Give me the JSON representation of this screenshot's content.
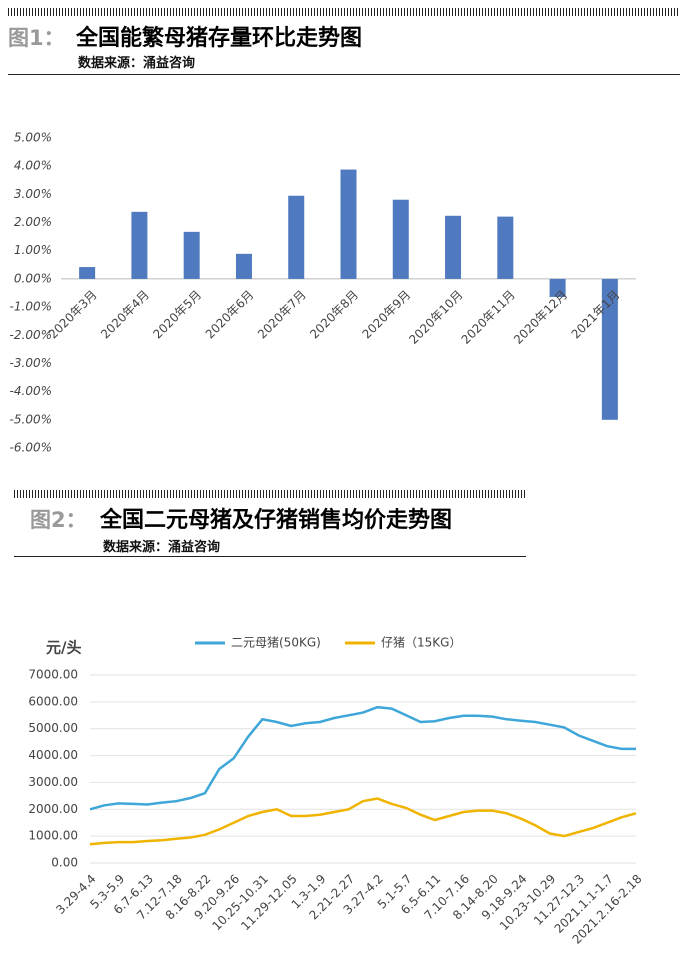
{
  "figure1": {
    "label": "图1：",
    "title": "全国能繁母猪存量环比走势图",
    "source": "数据来源：涌益咨询"
  },
  "figure2": {
    "label": "图2：",
    "title": "全国二元母猪及仔猪销售均价走势图",
    "source": "数据来源：涌益咨询"
  },
  "chart_data": [
    {
      "type": "bar",
      "color": "#4f7ac0",
      "categories": [
        "2020年3月",
        "2020年4月",
        "2020年5月",
        "2020年6月",
        "2020年7月",
        "2020年8月",
        "2020年9月",
        "2020年10月",
        "2020年11月",
        "2020年12月",
        "2021年1月"
      ],
      "values": [
        0.42,
        2.38,
        1.67,
        0.89,
        2.95,
        3.88,
        2.81,
        2.24,
        2.21,
        -0.64,
        -5.0
      ],
      "ylim": [
        -6,
        5
      ],
      "yticks": [
        {
          "value": 5,
          "label": "5.00%"
        },
        {
          "value": 4,
          "label": "4.00%"
        },
        {
          "value": 3,
          "label": "3.00%"
        },
        {
          "value": 2,
          "label": "2.00%"
        },
        {
          "value": 1,
          "label": "1.00%"
        },
        {
          "value": 0,
          "label": "0.00%"
        },
        {
          "value": -1,
          "label": "-1.00%"
        },
        {
          "value": -2,
          "label": "-2.00%"
        },
        {
          "value": -3,
          "label": "-3.00%"
        },
        {
          "value": -4,
          "label": "-4.00%"
        },
        {
          "value": -5,
          "label": "-5.00%"
        },
        {
          "value": -6,
          "label": "-6.00%"
        }
      ],
      "grid": false
    },
    {
      "type": "line",
      "ylabel": "元/头",
      "categories": [
        "3.29-4.4",
        null,
        "5.3-5.9",
        null,
        "6.7-6.13",
        null,
        "7.12-7.18",
        null,
        "8.16-8.22",
        null,
        "9.20-9.26",
        null,
        "10.25-10.31",
        null,
        "11.29-12.05",
        null,
        "1.3-1.9",
        null,
        "2.21-2.27",
        null,
        "3.27-4.2",
        null,
        "5.1-5.7",
        null,
        "6.5-6.11",
        null,
        "7.10-7.16",
        null,
        "8.14-8.20",
        null,
        "9.18-9.24",
        null,
        "10.23-10.29",
        null,
        "11.27-12.3",
        null,
        "2021.1.1-1.7",
        null,
        "2021.2.16-2.18"
      ],
      "series": [
        {
          "name": "二元母猪(50KG)",
          "color": "#3ea6d8",
          "values": [
            2000,
            2150,
            2220,
            2200,
            2180,
            2250,
            2300,
            2420,
            2600,
            3500,
            3900,
            4700,
            5350,
            5250,
            5100,
            5200,
            5250,
            5400,
            5500,
            5600,
            5800,
            5750,
            5500,
            5250,
            5280,
            5400,
            5480,
            5480,
            5450,
            5350,
            5300,
            5250,
            5150,
            5050,
            4750,
            4550,
            4350,
            4250,
            4250
          ]
        },
        {
          "name": "仔猪（15KG）",
          "color": "#f0b400",
          "values": [
            700,
            750,
            780,
            780,
            820,
            850,
            900,
            950,
            1050,
            1250,
            1500,
            1750,
            1900,
            2000,
            1750,
            1750,
            1800,
            1900,
            2000,
            2300,
            2400,
            2200,
            2050,
            1800,
            1600,
            1750,
            1900,
            1950,
            1950,
            1850,
            1650,
            1400,
            1100,
            1000,
            1150,
            1300,
            1500,
            1700,
            1850
          ]
        }
      ],
      "ylim": [
        0,
        7000
      ],
      "yticks": [
        {
          "value": 0,
          "label": "0.00"
        },
        {
          "value": 1000,
          "label": "1000.00"
        },
        {
          "value": 2000,
          "label": "2000.00"
        },
        {
          "value": 3000,
          "label": "3000.00"
        },
        {
          "value": 4000,
          "label": "4000.00"
        },
        {
          "value": 5000,
          "label": "5000.00"
        },
        {
          "value": 6000,
          "label": "6000.00"
        },
        {
          "value": 7000,
          "label": "7000.00"
        }
      ],
      "grid": true,
      "legend": "top"
    }
  ]
}
